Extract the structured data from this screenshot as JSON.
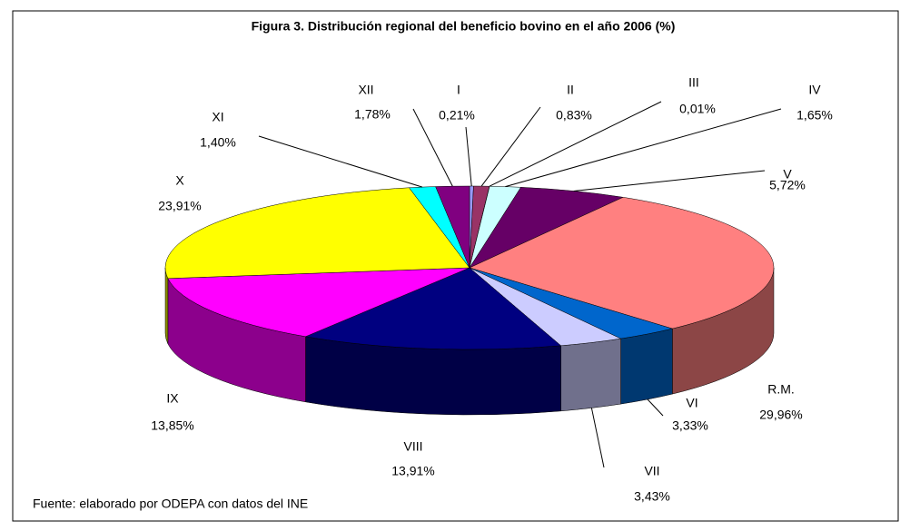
{
  "chart_data": {
    "type": "pie3d",
    "title": "Figura 3. Distribución regional del beneficio bovino en el año 2006 (%)",
    "categories": [
      "I",
      "II",
      "III",
      "IV",
      "V",
      "R.M.",
      "VI",
      "VII",
      "VIII",
      "IX",
      "X",
      "XI",
      "XII"
    ],
    "values": [
      0.21,
      0.83,
      0.01,
      1.65,
      5.72,
      29.96,
      3.33,
      3.43,
      13.91,
      13.85,
      23.91,
      1.4,
      1.78
    ],
    "value_labels": [
      "0,21%",
      "0,83%",
      "0,01%",
      "1,65%",
      "5,72%",
      "29,96%",
      "3,33%",
      "3,43%",
      "13,91%",
      "13,85%",
      "23,91%",
      "1,40%",
      "1,78%"
    ],
    "colors": [
      "#9999ff",
      "#993366",
      "#ffffcc",
      "#ccffff",
      "#660066",
      "#ff8080",
      "#0066cc",
      "#ccccff",
      "#000080",
      "#ff00ff",
      "#ffff00",
      "#00ffff",
      "#800080"
    ],
    "note": "Fuente: elaborado por ODEPA con datos del INE"
  }
}
